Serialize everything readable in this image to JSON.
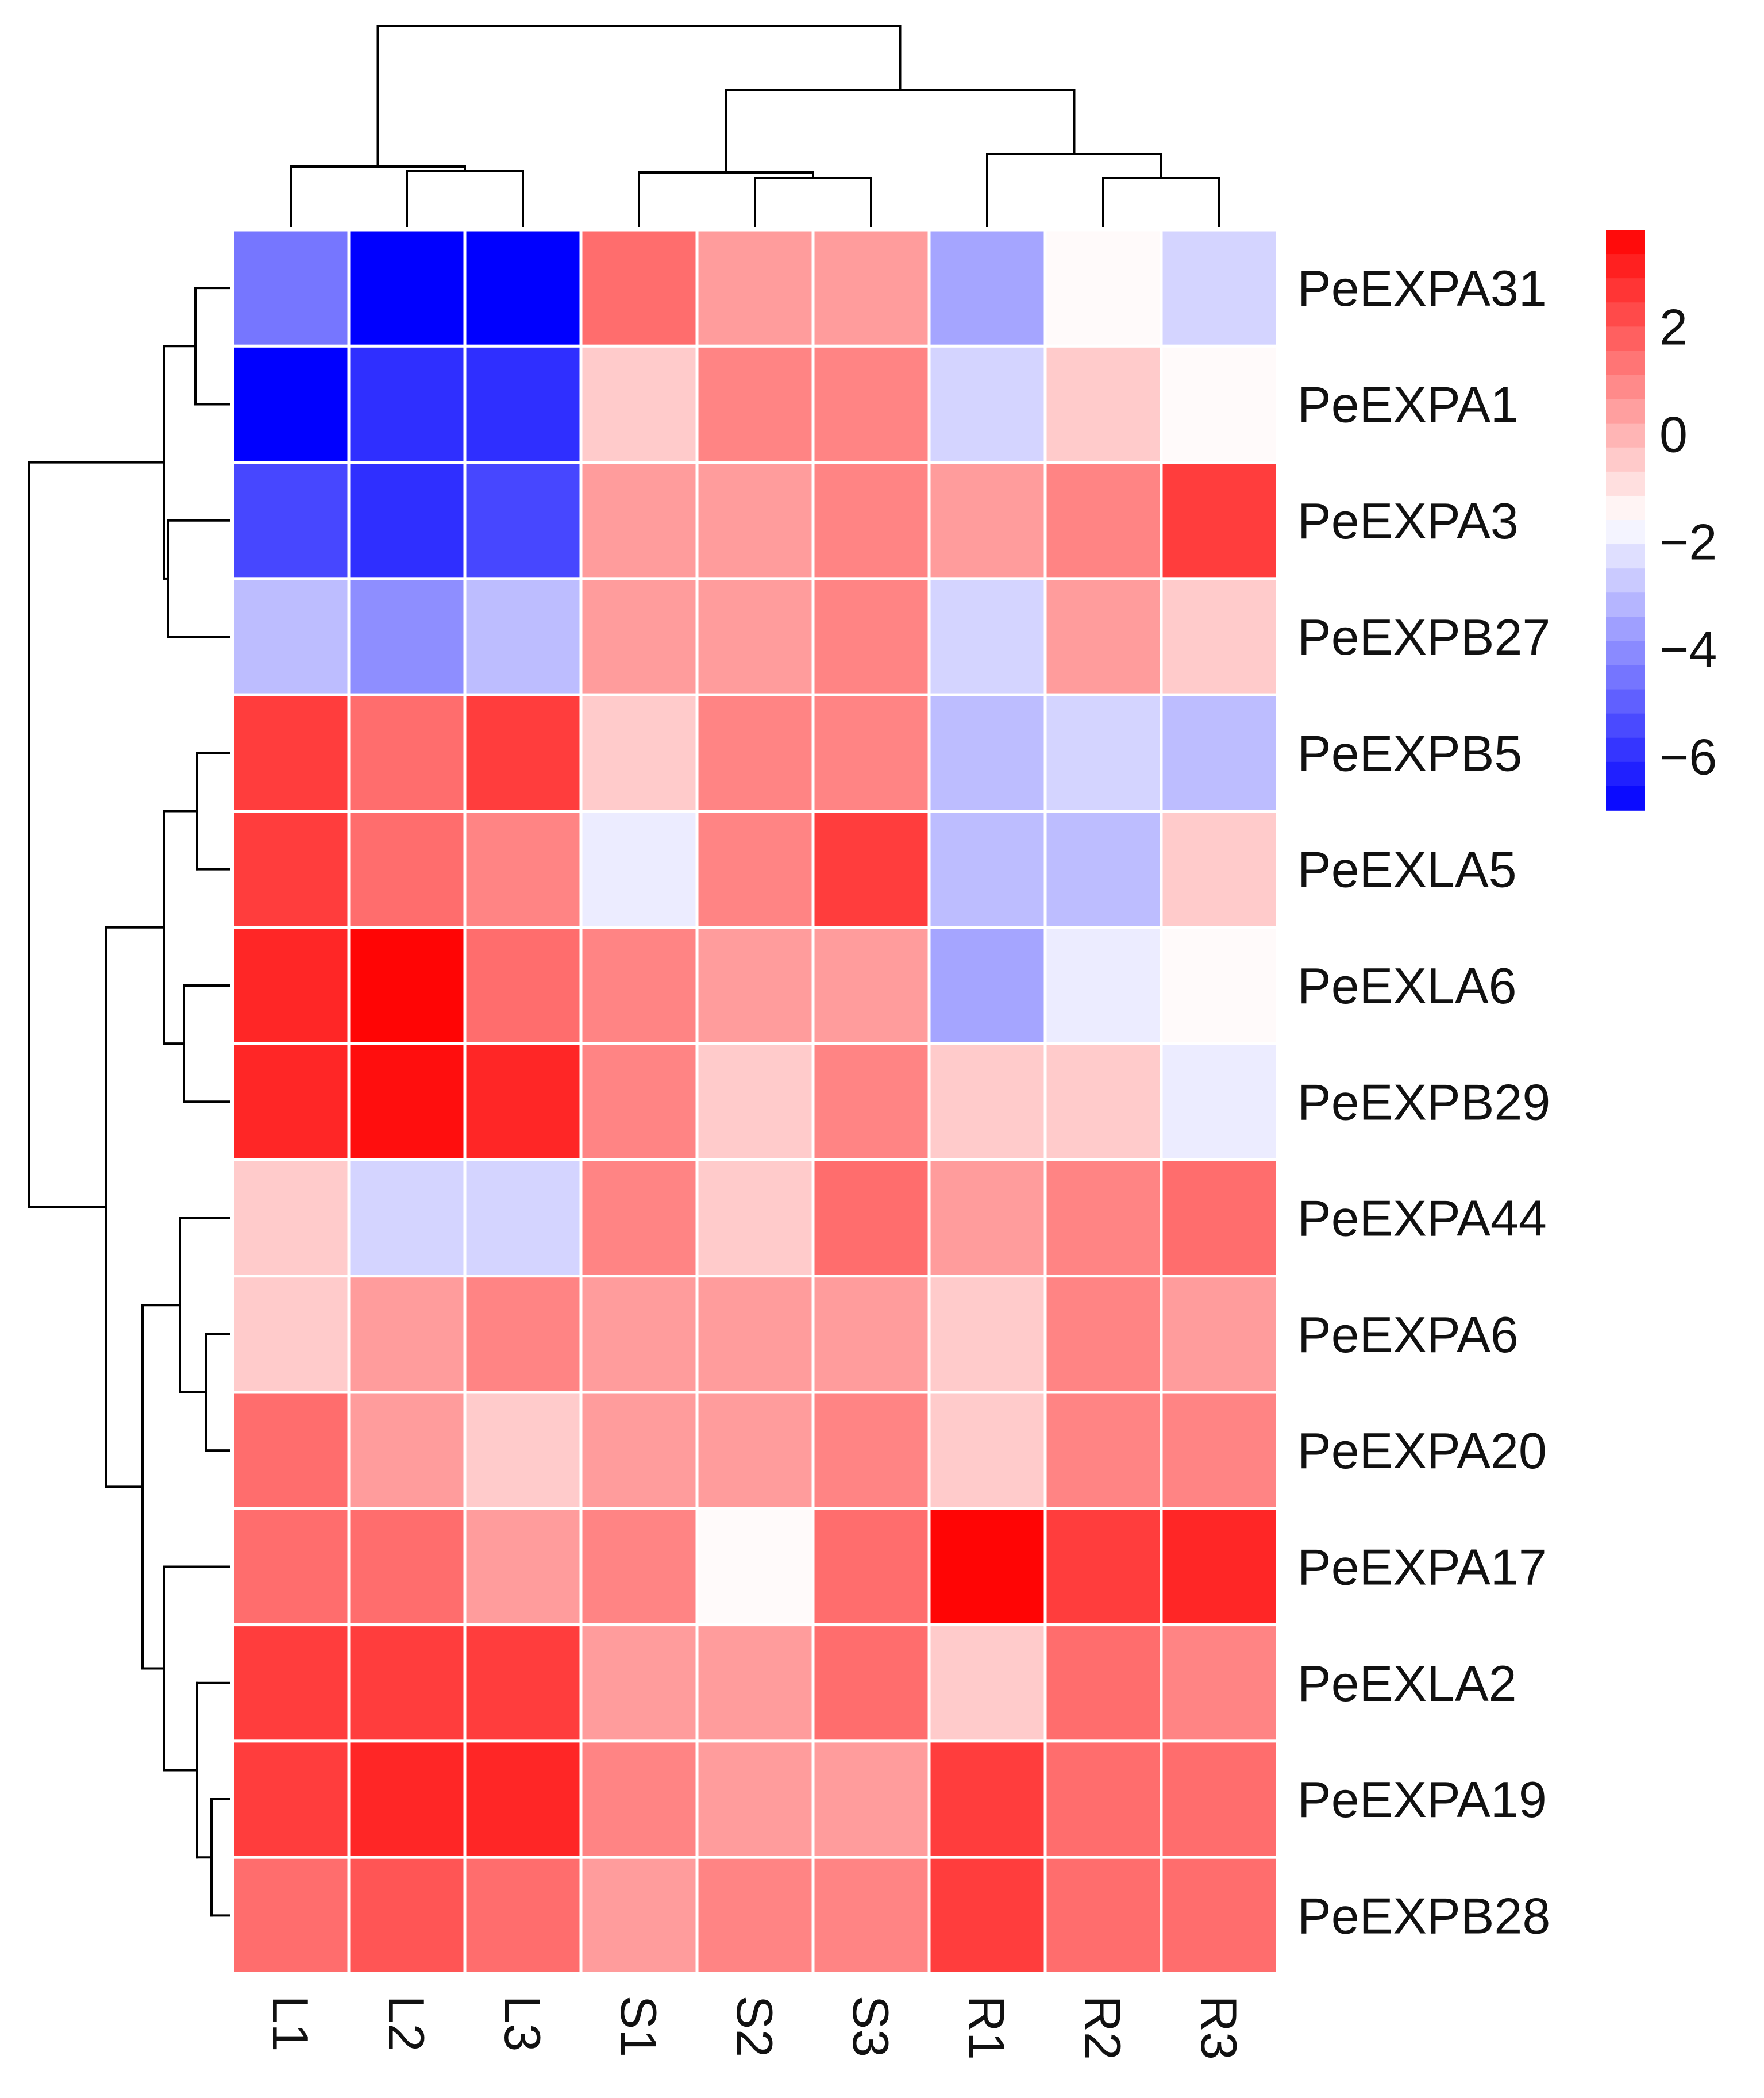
{
  "chart_data": {
    "type": "heatmap",
    "title": "",
    "rows": [
      "PeEXPA31",
      "PeEXPA1",
      "PeEXPA3",
      "PeEXPB27",
      "PeEXPB5",
      "PeEXLA5",
      "PeEXLA6",
      "PeEXPB29",
      "PeEXPA44",
      "PeEXPA6",
      "PeEXPA20",
      "PeEXPA17",
      "PeEXLA2",
      "PeEXPA19",
      "PeEXPB28"
    ],
    "columns": [
      "L1",
      "L2",
      "L3",
      "S1",
      "S2",
      "S3",
      "R1",
      "R2",
      "R3"
    ],
    "values": [
      [
        -4.5,
        -7.0,
        -7.0,
        1.5,
        0.5,
        0.5,
        -3.5,
        -1.5,
        -2.5
      ],
      [
        -7.0,
        -6.0,
        -6.0,
        -0.5,
        1.0,
        1.0,
        -2.5,
        -0.5,
        -1.5
      ],
      [
        -5.5,
        -6.0,
        -5.5,
        0.5,
        0.5,
        1.0,
        0.5,
        1.0,
        2.5
      ],
      [
        -3.0,
        -4.0,
        -3.0,
        0.5,
        0.5,
        1.0,
        -2.5,
        0.5,
        -0.5
      ],
      [
        2.5,
        1.5,
        2.5,
        -0.5,
        1.0,
        1.0,
        -3.0,
        -2.5,
        -3.0
      ],
      [
        2.5,
        1.5,
        1.0,
        -2.0,
        1.0,
        2.5,
        -3.0,
        -3.0,
        -0.5
      ],
      [
        3.0,
        3.7,
        1.5,
        1.0,
        0.5,
        0.5,
        -3.5,
        -2.0,
        -1.5
      ],
      [
        3.0,
        3.5,
        3.0,
        1.0,
        -0.5,
        1.0,
        -0.5,
        -0.5,
        -2.0
      ],
      [
        -0.5,
        -2.5,
        -2.5,
        1.0,
        -0.5,
        1.5,
        0.5,
        1.0,
        1.5
      ],
      [
        -0.5,
        0.5,
        1.0,
        0.5,
        0.5,
        0.5,
        -0.5,
        1.0,
        0.5
      ],
      [
        1.5,
        0.5,
        -0.5,
        0.5,
        0.5,
        1.0,
        -0.5,
        1.0,
        1.0
      ],
      [
        1.5,
        1.5,
        0.5,
        1.0,
        -1.5,
        1.5,
        3.7,
        2.5,
        3.0
      ],
      [
        2.5,
        2.5,
        2.5,
        0.5,
        0.5,
        1.5,
        -0.5,
        1.5,
        1.0
      ],
      [
        2.5,
        3.0,
        3.0,
        1.0,
        0.5,
        0.5,
        2.5,
        1.5,
        1.5
      ],
      [
        1.5,
        2.0,
        1.5,
        0.5,
        1.0,
        1.0,
        2.5,
        1.5,
        1.5
      ]
    ],
    "color_scale": {
      "min": -7.0,
      "max": 3.8,
      "low_color": "#0000ff",
      "mid_color": "#ffffff",
      "high_color": "#ff0000",
      "mid_value": -1.6,
      "ticks": [
        2,
        0,
        -2,
        -4,
        -6
      ],
      "tick_labels": [
        "2",
        "0",
        "−2",
        "−4",
        "−6"
      ]
    },
    "legend_position": "right",
    "row_dendrogram": true,
    "column_dendrogram": true
  }
}
